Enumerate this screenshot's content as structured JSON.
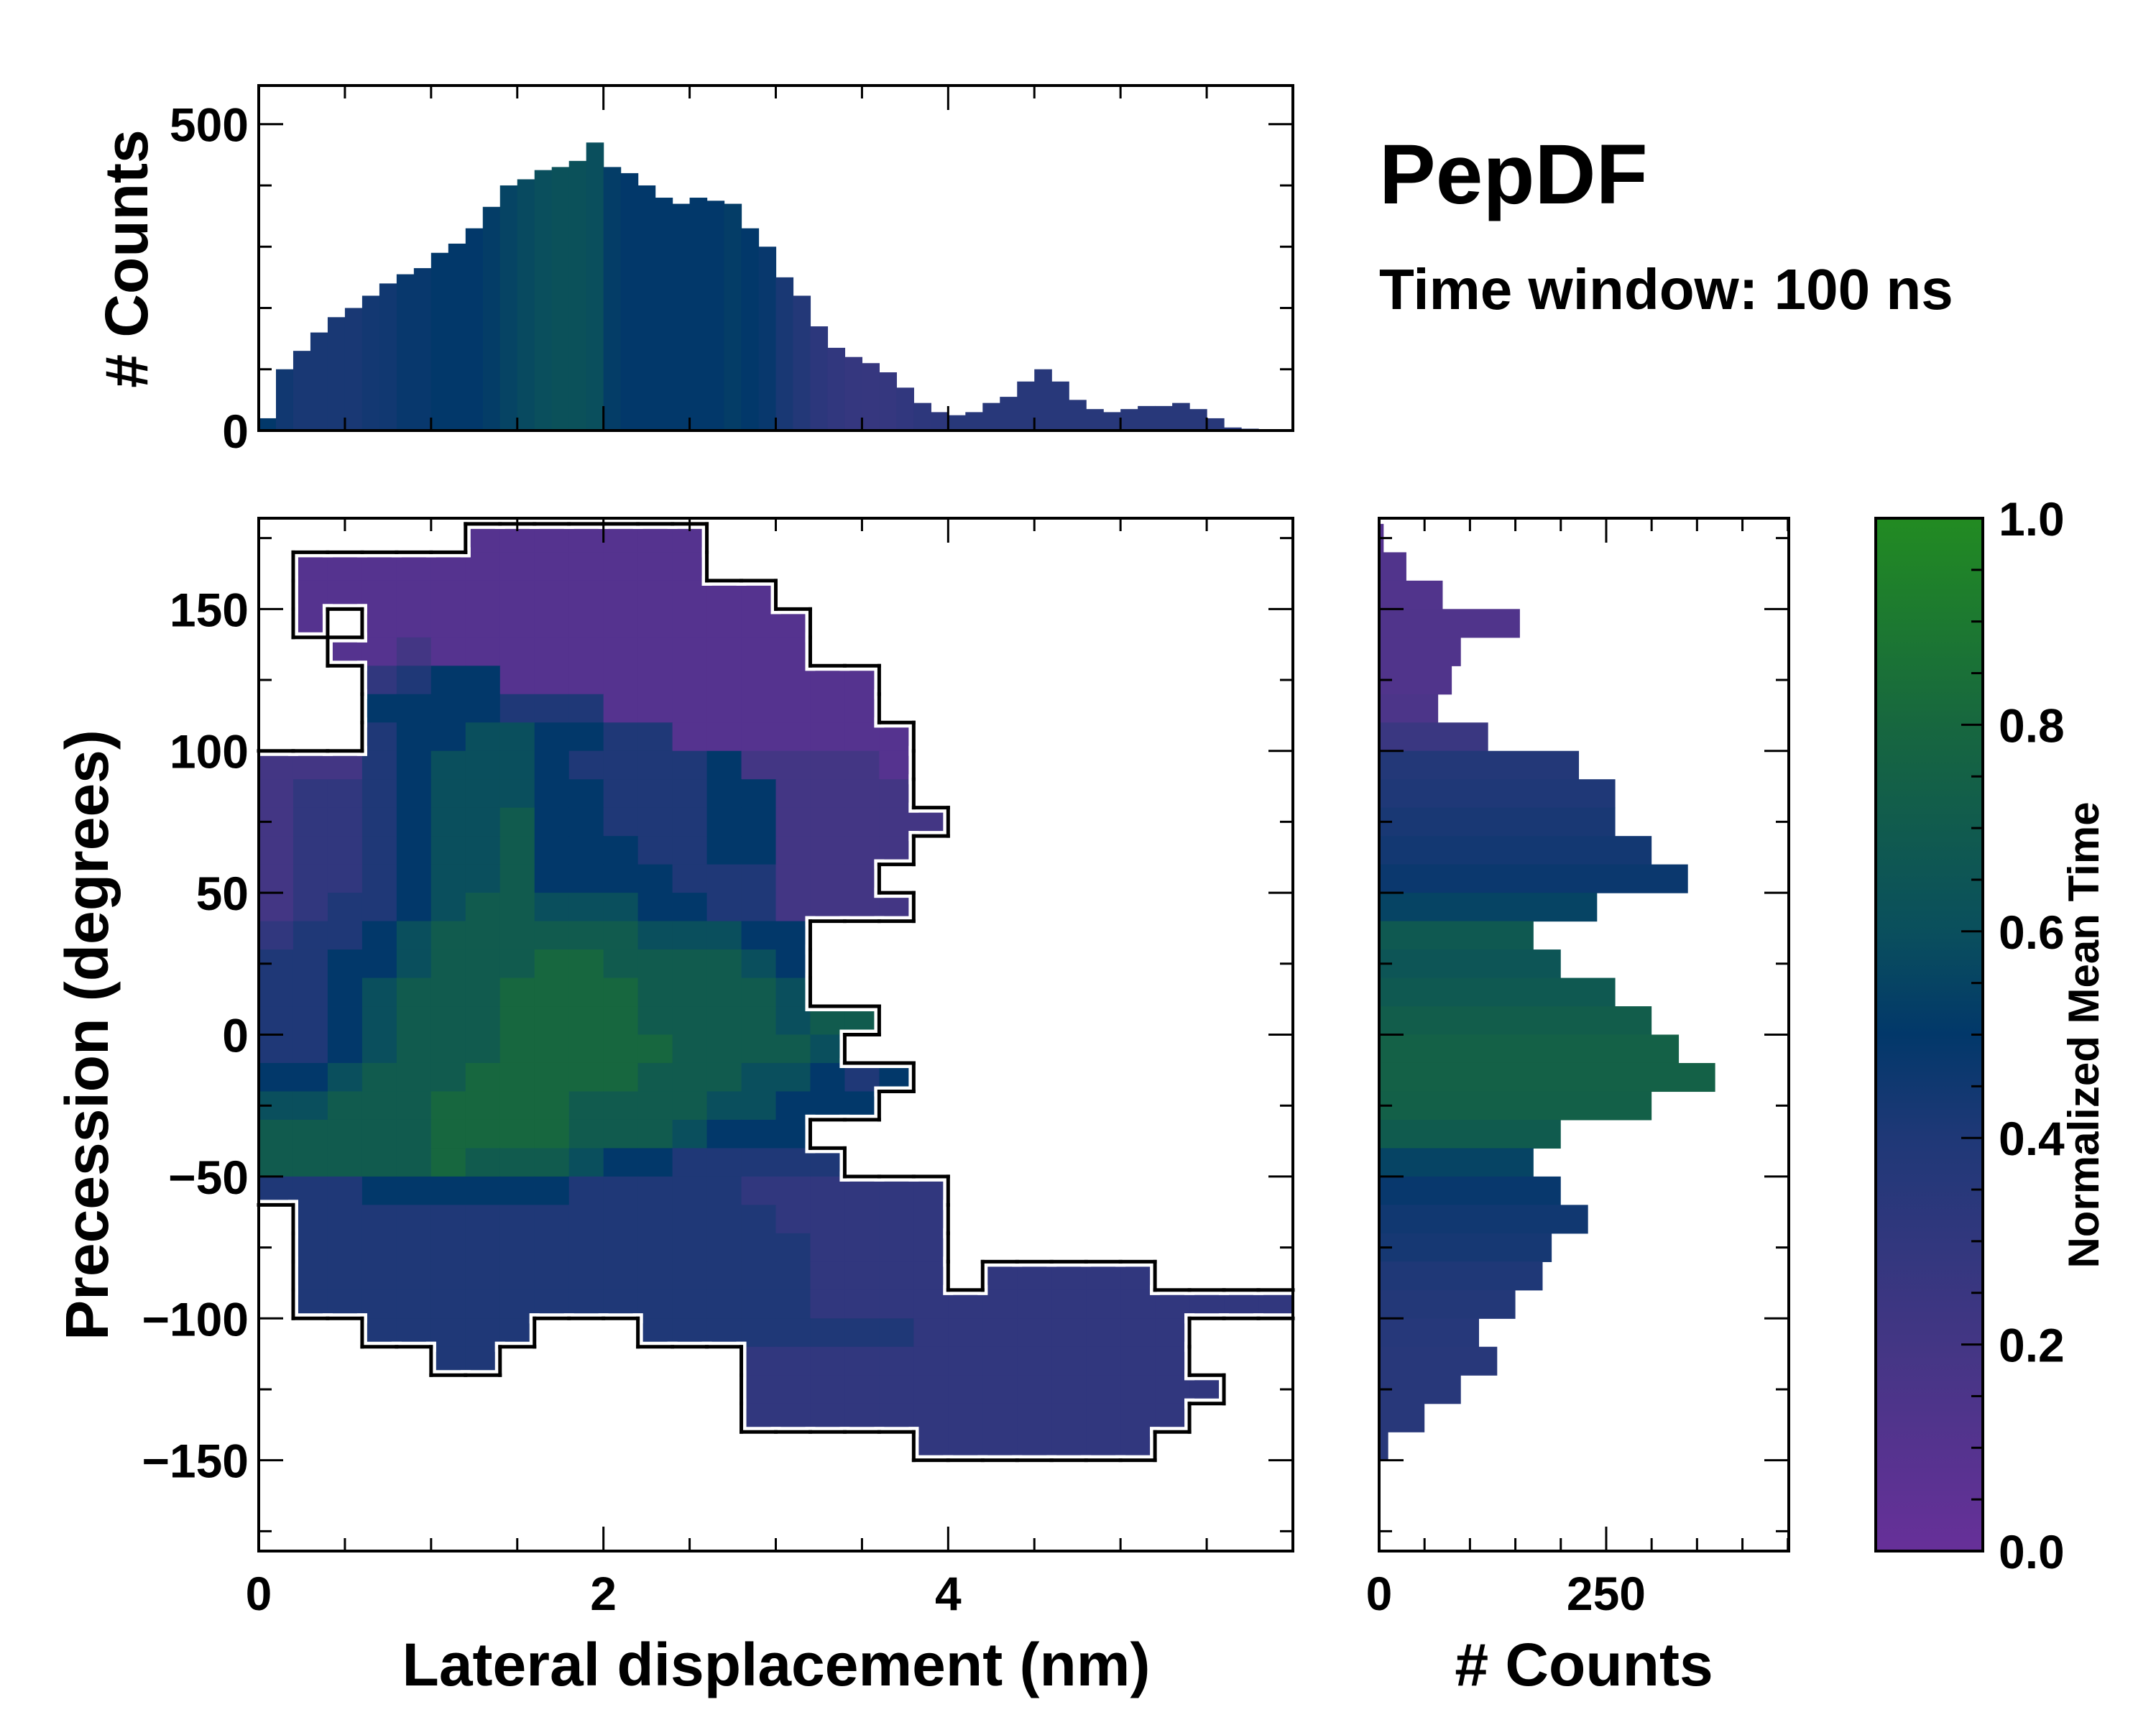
{
  "title": "PepDF",
  "subtitle": "Time window: 100 ns",
  "chart_data": [
    {
      "id": "top_histogram",
      "type": "bar",
      "ylabel": "# Counts",
      "xlim": [
        0,
        6
      ],
      "ylim": [
        0,
        563
      ],
      "yticks": [
        {
          "v": 0,
          "label": "0"
        },
        {
          "v": 500,
          "label": "500"
        }
      ],
      "bin_start": 0,
      "bin_width": 0.1,
      "counts": [
        20,
        100,
        130,
        160,
        185,
        200,
        220,
        240,
        255,
        265,
        290,
        305,
        330,
        365,
        400,
        410,
        425,
        430,
        440,
        470,
        430,
        420,
        400,
        380,
        370,
        380,
        375,
        370,
        330,
        300,
        250,
        220,
        170,
        135,
        120,
        110,
        95,
        70,
        45,
        30,
        25,
        30,
        45,
        55,
        80,
        100,
        80,
        50,
        35,
        30,
        35,
        40,
        40,
        45,
        35,
        20,
        5,
        3,
        1,
        0
      ],
      "mean_time": [
        0.5,
        0.45,
        0.42,
        0.42,
        0.42,
        0.42,
        0.44,
        0.45,
        0.48,
        0.48,
        0.5,
        0.5,
        0.5,
        0.52,
        0.55,
        0.58,
        0.6,
        0.62,
        0.62,
        0.6,
        0.52,
        0.5,
        0.5,
        0.5,
        0.5,
        0.5,
        0.5,
        0.52,
        0.5,
        0.48,
        0.42,
        0.38,
        0.33,
        0.3,
        0.28,
        0.27,
        0.28,
        0.3,
        0.32,
        0.33,
        0.35,
        0.35,
        0.35,
        0.35,
        0.35,
        0.35,
        0.35,
        0.35,
        0.35,
        0.35,
        0.35,
        0.35,
        0.35,
        0.35,
        0.35,
        0.35,
        0.35,
        0.35,
        0.35,
        0.35
      ]
    },
    {
      "id": "main_heatmap",
      "type": "heatmap",
      "xlabel": "Lateral displacement (nm)",
      "ylabel": "Precession (degrees)",
      "xlim": [
        0,
        6
      ],
      "ylim": [
        -182,
        182
      ],
      "xticks": [
        {
          "v": 0,
          "label": "0"
        },
        {
          "v": 2,
          "label": "2"
        },
        {
          "v": 4,
          "label": "4"
        }
      ],
      "yticks": [
        {
          "v": -150,
          "label": "−150"
        },
        {
          "v": -100,
          "label": "−100"
        },
        {
          "v": -50,
          "label": "−50"
        },
        {
          "v": 0,
          "label": "0"
        },
        {
          "v": 50,
          "label": "50"
        },
        {
          "v": 100,
          "label": "100"
        },
        {
          "v": 150,
          "label": "150"
        }
      ],
      "x_bin_width": 0.2,
      "y_top": 180,
      "y_bin_width": 10,
      "value_scale": 0.1,
      "rows": [
        "......1111111",
        ".111111111111",
        ".11111111111111",
        ".1.1111111111111",
        "..11211111111111",
        "...345511111111111",
        "...555544411111111",
        "...4556655441111111",
        "2224566654444522221",
        "2334566655444552222",
        "23345667554445522222",
        "2334566755544552222",
        "233456675555444222",
        "2344567766655442222",
        "3445677777766655",
        "4455677788777765",
        "4456777888877776",
        "445677788887777677",
        "44567778888877776",
        "5567778888877766545",
        "667778888777766555",
        "7777788887776555",
        "77777877765544444",
        "44455555544444333333",
        ".4444444444444433333",
        ".4444444444444443333",
        ".4444444444444443333.33333",
        ".44444444444444433333333333333",
        "...44444...4444444433333333",
        ".....44.......3333333333333",
        "..............33333333333333",
        "..............3333333333333",
        "...................3333333",
        "",
        "",
        ""
      ]
    },
    {
      "id": "right_histogram",
      "type": "bar",
      "orientation": "horizontal",
      "xlabel": "# Counts",
      "xlim": [
        0,
        451
      ],
      "xticks": [
        {
          "v": 0,
          "label": "0"
        },
        {
          "v": 250,
          "label": "250"
        }
      ],
      "bin_top": 180,
      "bin_width": 10,
      "counts": [
        5,
        30,
        70,
        155,
        90,
        80,
        65,
        120,
        220,
        260,
        260,
        300,
        340,
        240,
        170,
        200,
        260,
        300,
        330,
        370,
        300,
        200,
        170,
        200,
        230,
        190,
        180,
        150,
        110,
        130,
        90,
        50,
        10,
        0,
        0,
        0
      ],
      "mean_time": [
        0.1,
        0.12,
        0.12,
        0.13,
        0.13,
        0.13,
        0.15,
        0.25,
        0.38,
        0.4,
        0.42,
        0.44,
        0.47,
        0.55,
        0.68,
        0.65,
        0.68,
        0.72,
        0.75,
        0.75,
        0.74,
        0.7,
        0.55,
        0.48,
        0.45,
        0.43,
        0.4,
        0.38,
        0.36,
        0.35,
        0.35,
        0.35,
        0.35,
        0,
        0,
        0
      ]
    },
    {
      "id": "colorbar",
      "type": "colorbar",
      "label": "Normalized Mean Time",
      "range": [
        0,
        1
      ],
      "ticks": [
        {
          "v": 0,
          "label": "0.0"
        },
        {
          "v": 0.2,
          "label": "0.2"
        },
        {
          "v": 0.4,
          "label": "0.4"
        },
        {
          "v": 0.6,
          "label": "0.6"
        },
        {
          "v": 0.8,
          "label": "0.8"
        },
        {
          "v": 1,
          "label": "1.0"
        }
      ],
      "colors": [
        {
          "v": 0.0,
          "c": "#673099"
        },
        {
          "v": 0.2,
          "c": "#433684"
        },
        {
          "v": 0.4,
          "c": "#1f3877"
        },
        {
          "v": 0.5,
          "c": "#02386a"
        },
        {
          "v": 0.6,
          "c": "#0a4f5d"
        },
        {
          "v": 0.8,
          "c": "#17673f"
        },
        {
          "v": 1.0,
          "c": "#228b22"
        }
      ]
    }
  ]
}
